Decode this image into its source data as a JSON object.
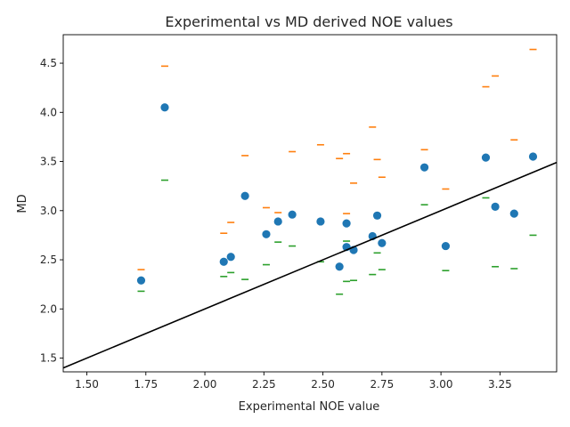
{
  "chart_data": {
    "type": "scatter",
    "title": "Experimental vs MD derived NOE values",
    "xlabel": "Experimental NOE value",
    "ylabel": "MD",
    "xlim": [
      1.4,
      3.49
    ],
    "ylim": [
      1.36,
      4.79
    ],
    "xticks": [
      1.5,
      1.75,
      2.0,
      2.25,
      2.5,
      2.75,
      3.0,
      3.25
    ],
    "xtick_labels": [
      "1.50",
      "1.75",
      "2.00",
      "2.25",
      "2.50",
      "2.75",
      "3.00",
      "3.25"
    ],
    "yticks": [
      1.5,
      2.0,
      2.5,
      3.0,
      3.5,
      4.0,
      4.5
    ],
    "ytick_labels": [
      "1.5",
      "2.0",
      "2.5",
      "3.0",
      "3.5",
      "4.0",
      "4.5"
    ],
    "grid": false,
    "legend": "none",
    "reference_line": {
      "slope": 1,
      "intercept": 0,
      "color": "#000000"
    },
    "series": [
      {
        "marker": "circle",
        "color": "#1f77b4",
        "points": [
          [
            1.73,
            2.29
          ],
          [
            1.83,
            4.05
          ],
          [
            2.08,
            2.48
          ],
          [
            2.11,
            2.53
          ],
          [
            2.17,
            3.15
          ],
          [
            2.26,
            2.76
          ],
          [
            2.31,
            2.89
          ],
          [
            2.37,
            2.96
          ],
          [
            2.49,
            2.89
          ],
          [
            2.57,
            2.43
          ],
          [
            2.6,
            2.87
          ],
          [
            2.6,
            2.63
          ],
          [
            2.63,
            2.6
          ],
          [
            2.71,
            2.74
          ],
          [
            2.73,
            2.95
          ],
          [
            2.75,
            2.67
          ],
          [
            2.93,
            3.44
          ],
          [
            3.02,
            2.64
          ],
          [
            3.19,
            3.54
          ],
          [
            3.23,
            3.04
          ],
          [
            3.31,
            2.97
          ],
          [
            3.39,
            3.55
          ]
        ]
      },
      {
        "marker": "hline",
        "color": "#ff7f0e",
        "points": [
          [
            1.73,
            2.4
          ],
          [
            1.83,
            4.47
          ],
          [
            2.08,
            2.77
          ],
          [
            2.11,
            2.88
          ],
          [
            2.17,
            3.56
          ],
          [
            2.26,
            3.03
          ],
          [
            2.31,
            2.98
          ],
          [
            2.37,
            3.6
          ],
          [
            2.49,
            3.67
          ],
          [
            2.57,
            3.53
          ],
          [
            2.6,
            3.58
          ],
          [
            2.6,
            2.97
          ],
          [
            2.63,
            3.28
          ],
          [
            2.71,
            3.85
          ],
          [
            2.73,
            3.52
          ],
          [
            2.75,
            3.34
          ],
          [
            2.93,
            3.62
          ],
          [
            3.02,
            3.22
          ],
          [
            3.19,
            4.26
          ],
          [
            3.23,
            4.37
          ],
          [
            3.31,
            3.72
          ],
          [
            3.39,
            4.64
          ]
        ]
      },
      {
        "marker": "hline",
        "color": "#2ca02c",
        "points": [
          [
            1.73,
            2.18
          ],
          [
            1.83,
            3.31
          ],
          [
            2.08,
            2.33
          ],
          [
            2.11,
            2.37
          ],
          [
            2.17,
            2.3
          ],
          [
            2.26,
            2.45
          ],
          [
            2.31,
            2.68
          ],
          [
            2.37,
            2.64
          ],
          [
            2.49,
            2.48
          ],
          [
            2.57,
            2.15
          ],
          [
            2.6,
            2.69
          ],
          [
            2.6,
            2.28
          ],
          [
            2.63,
            2.29
          ],
          [
            2.71,
            2.35
          ],
          [
            2.73,
            2.57
          ],
          [
            2.75,
            2.4
          ],
          [
            2.93,
            3.06
          ],
          [
            3.02,
            2.39
          ],
          [
            3.19,
            3.13
          ],
          [
            3.23,
            2.43
          ],
          [
            3.31,
            2.41
          ],
          [
            3.39,
            2.75
          ]
        ]
      }
    ]
  }
}
